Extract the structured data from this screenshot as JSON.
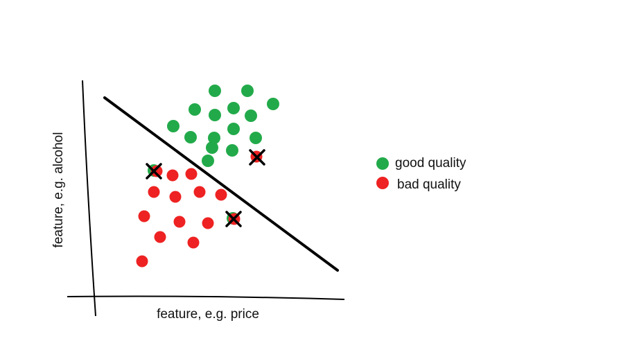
{
  "axes": {
    "x_label": "feature, e.g. price",
    "y_label": "feature, e.g. alcohol"
  },
  "legend": {
    "items": [
      {
        "label": "good quality",
        "color": "#22aa4a"
      },
      {
        "label": "bad quality",
        "color": "#ee2222"
      }
    ]
  },
  "colors": {
    "good": "#22aa4a",
    "bad": "#ee2222",
    "ink": "#000000"
  },
  "chart_data": {
    "type": "scatter",
    "xlabel": "feature, e.g. price",
    "ylabel": "feature, e.g. alcohol",
    "decision_boundary": "straight line from upper-left to lower-right",
    "series": [
      {
        "name": "good quality",
        "count": 17
      },
      {
        "name": "bad quality",
        "count": 15
      }
    ],
    "misclassified_marks": 3
  }
}
